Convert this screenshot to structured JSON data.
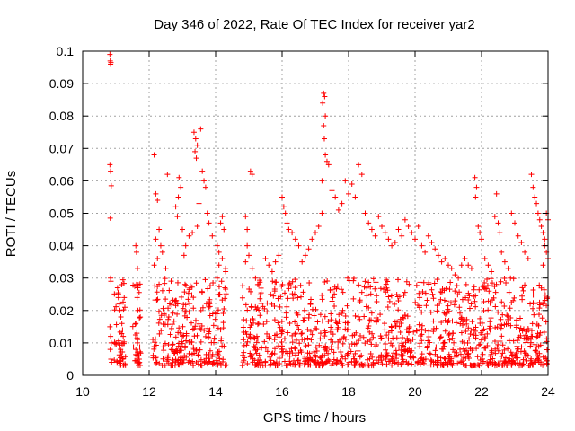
{
  "chart_data": {
    "type": "scatter",
    "title": "Day 346 of 2022, Rate Of TEC Index for receiver yar2",
    "xlabel": "GPS time / hours",
    "ylabel": "ROTI / TECUs",
    "xlim": [
      10,
      24
    ],
    "ylim": [
      0,
      0.1
    ],
    "x_ticks": [
      10,
      12,
      14,
      16,
      18,
      20,
      22,
      24
    ],
    "y_ticks": [
      0,
      0.01,
      0.02,
      0.03,
      0.04,
      0.05,
      0.06,
      0.07,
      0.08,
      0.09,
      0.1
    ],
    "x_tick_labels": [
      "10",
      "12",
      "14",
      "16",
      "18",
      "20",
      "22",
      "24"
    ],
    "y_tick_labels": [
      "0",
      "0.01",
      "0.02",
      "0.03",
      "0.04",
      "0.05",
      "0.06",
      "0.07",
      "0.08",
      "0.09",
      "0.1"
    ],
    "grid": true,
    "marker": "+",
    "color": "#ff0000",
    "series": [
      {
        "points": [
          [
            10.82,
            0.099
          ],
          [
            10.83,
            0.097
          ],
          [
            10.84,
            0.096
          ],
          [
            10.85,
            0.0965
          ],
          [
            10.82,
            0.065
          ],
          [
            10.84,
            0.063
          ],
          [
            10.86,
            0.0585
          ],
          [
            10.83,
            0.0485
          ],
          [
            10.84,
            0.03
          ],
          [
            10.85,
            0.029
          ],
          [
            10.82,
            0.015
          ],
          [
            10.84,
            0.012
          ],
          [
            10.86,
            0.01
          ],
          [
            10.83,
            0.008
          ],
          [
            10.85,
            0.005
          ],
          [
            10.87,
            0.004
          ],
          [
            11.05,
            0.027
          ],
          [
            11.08,
            0.025
          ],
          [
            11.1,
            0.022
          ],
          [
            11.12,
            0.02
          ],
          [
            11.15,
            0.018
          ],
          [
            11.18,
            0.016
          ],
          [
            11.2,
            0.014
          ],
          [
            11.22,
            0.012
          ],
          [
            11.1,
            0.01
          ],
          [
            11.14,
            0.008
          ],
          [
            11.17,
            0.006
          ],
          [
            11.2,
            0.005
          ],
          [
            11.25,
            0.024
          ],
          [
            11.27,
            0.021
          ],
          [
            11.6,
            0.04
          ],
          [
            11.62,
            0.038
          ],
          [
            11.65,
            0.033
          ],
          [
            11.62,
            0.028
          ],
          [
            11.64,
            0.024
          ],
          [
            11.66,
            0.02
          ],
          [
            11.6,
            0.016
          ],
          [
            11.63,
            0.013
          ],
          [
            11.65,
            0.01
          ],
          [
            11.6,
            0.008
          ],
          [
            11.67,
            0.006
          ],
          [
            11.7,
            0.005
          ],
          [
            12.15,
            0.068
          ],
          [
            12.2,
            0.056
          ],
          [
            12.25,
            0.054
          ],
          [
            12.3,
            0.045
          ],
          [
            12.2,
            0.042
          ],
          [
            12.35,
            0.04
          ],
          [
            12.4,
            0.038
          ],
          [
            12.25,
            0.036
          ],
          [
            12.15,
            0.034
          ],
          [
            12.5,
            0.033
          ],
          [
            12.55,
            0.062
          ],
          [
            12.8,
            0.052
          ],
          [
            12.85,
            0.049
          ],
          [
            12.9,
            0.061
          ],
          [
            12.95,
            0.058
          ],
          [
            12.88,
            0.055
          ],
          [
            13.0,
            0.045
          ],
          [
            13.1,
            0.04
          ],
          [
            13.2,
            0.043
          ],
          [
            13.05,
            0.037
          ],
          [
            13.35,
            0.075
          ],
          [
            13.4,
            0.073
          ],
          [
            13.45,
            0.071
          ],
          [
            13.38,
            0.069
          ],
          [
            13.42,
            0.067
          ],
          [
            13.55,
            0.076
          ],
          [
            13.6,
            0.063
          ],
          [
            13.65,
            0.06
          ],
          [
            13.7,
            0.058
          ],
          [
            13.5,
            0.053
          ],
          [
            13.75,
            0.05
          ],
          [
            13.8,
            0.047
          ],
          [
            13.3,
            0.044
          ],
          [
            13.45,
            0.046
          ],
          [
            13.9,
            0.043
          ],
          [
            14.05,
            0.04
          ],
          [
            14.1,
            0.038
          ],
          [
            14.2,
            0.049
          ],
          [
            14.15,
            0.047
          ],
          [
            14.25,
            0.045
          ],
          [
            14.1,
            0.034
          ],
          [
            14.2,
            0.036
          ],
          [
            14.3,
            0.032
          ],
          [
            14.18,
            0.029
          ],
          [
            14.28,
            0.027
          ],
          [
            14.3,
            0.033
          ],
          [
            14.9,
            0.049
          ],
          [
            14.95,
            0.045
          ],
          [
            15.05,
            0.063
          ],
          [
            15.1,
            0.062
          ],
          [
            14.95,
            0.04
          ],
          [
            15.0,
            0.037
          ],
          [
            14.9,
            0.035
          ],
          [
            15.1,
            0.033
          ],
          [
            15.2,
            0.03
          ],
          [
            15.3,
            0.028
          ],
          [
            15.5,
            0.036
          ],
          [
            15.6,
            0.034
          ],
          [
            15.7,
            0.032
          ],
          [
            15.8,
            0.035
          ],
          [
            15.9,
            0.037
          ],
          [
            16.0,
            0.055
          ],
          [
            16.05,
            0.052
          ],
          [
            16.1,
            0.05
          ],
          [
            16.15,
            0.047
          ],
          [
            16.2,
            0.045
          ],
          [
            16.3,
            0.044
          ],
          [
            16.4,
            0.042
          ],
          [
            16.5,
            0.04
          ],
          [
            16.6,
            0.035
          ],
          [
            16.7,
            0.037
          ],
          [
            16.8,
            0.039
          ],
          [
            16.9,
            0.042
          ],
          [
            17.0,
            0.044
          ],
          [
            17.1,
            0.046
          ],
          [
            17.2,
            0.05
          ],
          [
            17.25,
            0.087
          ],
          [
            17.28,
            0.086
          ],
          [
            17.22,
            0.084
          ],
          [
            17.3,
            0.08
          ],
          [
            17.25,
            0.077
          ],
          [
            17.27,
            0.073
          ],
          [
            17.3,
            0.068
          ],
          [
            17.35,
            0.066
          ],
          [
            17.4,
            0.065
          ],
          [
            17.2,
            0.06
          ],
          [
            17.5,
            0.057
          ],
          [
            17.6,
            0.055
          ],
          [
            17.7,
            0.051
          ],
          [
            17.8,
            0.053
          ],
          [
            17.9,
            0.06
          ],
          [
            18.0,
            0.056
          ],
          [
            18.1,
            0.059
          ],
          [
            18.2,
            0.055
          ],
          [
            18.3,
            0.065
          ],
          [
            18.4,
            0.062
          ],
          [
            18.5,
            0.05
          ],
          [
            18.6,
            0.047
          ],
          [
            18.7,
            0.045
          ],
          [
            18.8,
            0.043
          ],
          [
            18.9,
            0.049
          ],
          [
            19.0,
            0.046
          ],
          [
            19.1,
            0.044
          ],
          [
            19.2,
            0.042
          ],
          [
            19.3,
            0.04
          ],
          [
            19.4,
            0.041
          ],
          [
            19.5,
            0.045
          ],
          [
            19.6,
            0.043
          ],
          [
            19.7,
            0.048
          ],
          [
            19.8,
            0.046
          ],
          [
            19.9,
            0.044
          ],
          [
            20.0,
            0.042
          ],
          [
            20.1,
            0.046
          ],
          [
            20.2,
            0.04
          ],
          [
            20.3,
            0.038
          ],
          [
            20.4,
            0.043
          ],
          [
            20.5,
            0.041
          ],
          [
            20.6,
            0.039
          ],
          [
            20.7,
            0.037
          ],
          [
            20.8,
            0.035
          ],
          [
            20.9,
            0.036
          ],
          [
            21.0,
            0.034
          ],
          [
            21.1,
            0.033
          ],
          [
            21.2,
            0.031
          ],
          [
            21.3,
            0.03
          ],
          [
            21.4,
            0.034
          ],
          [
            21.5,
            0.036
          ],
          [
            21.6,
            0.034
          ],
          [
            21.7,
            0.033
          ],
          [
            21.8,
            0.061
          ],
          [
            21.85,
            0.058
          ],
          [
            21.82,
            0.055
          ],
          [
            21.9,
            0.046
          ],
          [
            21.95,
            0.044
          ],
          [
            22.0,
            0.042
          ],
          [
            22.1,
            0.036
          ],
          [
            22.2,
            0.034
          ],
          [
            22.3,
            0.032
          ],
          [
            22.4,
            0.049
          ],
          [
            22.45,
            0.056
          ],
          [
            22.5,
            0.047
          ],
          [
            22.55,
            0.044
          ],
          [
            22.6,
            0.038
          ],
          [
            22.7,
            0.035
          ],
          [
            22.8,
            0.033
          ],
          [
            22.9,
            0.05
          ],
          [
            23.0,
            0.047
          ],
          [
            23.1,
            0.043
          ],
          [
            23.2,
            0.041
          ],
          [
            23.3,
            0.038
          ],
          [
            23.4,
            0.036
          ],
          [
            23.5,
            0.062
          ],
          [
            23.55,
            0.058
          ],
          [
            23.6,
            0.055
          ],
          [
            23.65,
            0.053
          ],
          [
            23.7,
            0.05
          ],
          [
            23.75,
            0.048
          ],
          [
            23.8,
            0.046
          ],
          [
            23.85,
            0.044
          ],
          [
            23.9,
            0.042
          ],
          [
            23.95,
            0.05
          ],
          [
            24.0,
            0.048
          ],
          [
            23.9,
            0.04
          ],
          [
            23.95,
            0.038
          ],
          [
            24.0,
            0.036
          ],
          [
            23.85,
            0.034
          ]
        ]
      }
    ],
    "dense_band": {
      "segments": [
        [
          10.95,
          11.3
        ],
        [
          11.5,
          11.75
        ],
        [
          12.1,
          14.35
        ],
        [
          14.8,
          24.0
        ]
      ],
      "y_range": [
        0.003,
        0.03
      ]
    }
  }
}
